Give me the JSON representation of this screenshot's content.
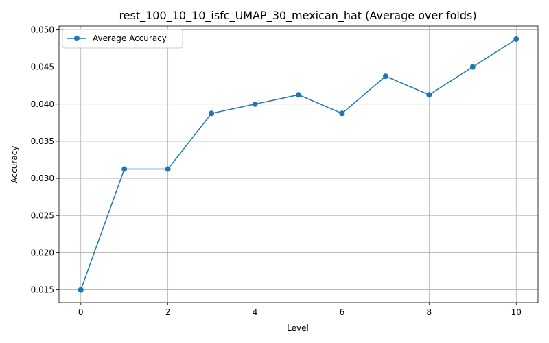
{
  "chart_data": {
    "type": "line",
    "title": "rest_100_10_10_isfc_UMAP_30_mexican_hat (Average over folds)",
    "xlabel": "Level",
    "ylabel": "Accuracy",
    "x": [
      0,
      1,
      2,
      3,
      4,
      5,
      6,
      7,
      8,
      9,
      10
    ],
    "series": [
      {
        "name": "Average Accuracy",
        "color": "#1f77b4",
        "marker": "circle",
        "values": [
          0.015,
          0.03125,
          0.03125,
          0.03875,
          0.04,
          0.04125,
          0.03875,
          0.04375,
          0.04125,
          0.045,
          0.04875
        ]
      }
    ],
    "xlim": [
      -0.5,
      10.5
    ],
    "ylim": [
      0.0133,
      0.0505
    ],
    "xticks": [
      0,
      2,
      4,
      6,
      8,
      10
    ],
    "xtick_labels": [
      "0",
      "2",
      "4",
      "6",
      "8",
      "10"
    ],
    "yticks": [
      0.015,
      0.02,
      0.025,
      0.03,
      0.035,
      0.04,
      0.045,
      0.05
    ],
    "ytick_labels": [
      "0.015",
      "0.020",
      "0.025",
      "0.030",
      "0.035",
      "0.040",
      "0.045",
      "0.050"
    ],
    "grid": true,
    "legend_position": "top-left"
  }
}
